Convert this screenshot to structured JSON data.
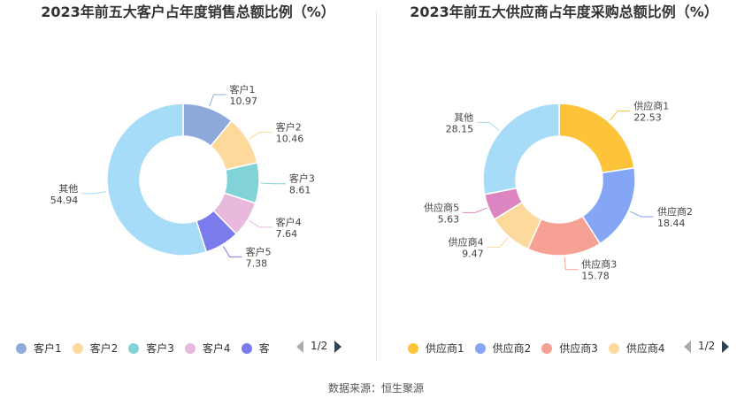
{
  "source": "数据来源：恒生聚源",
  "chart_data": [
    {
      "type": "pie",
      "title": "2023年前五大客户占年度销售总额比例（%）",
      "categories": [
        "客户1",
        "客户2",
        "客户3",
        "客户4",
        "客户5",
        "其他"
      ],
      "values": [
        10.97,
        10.46,
        8.61,
        7.64,
        7.38,
        54.94
      ],
      "value_labels": [
        "10.97",
        "10.46",
        "8.61",
        "7.64",
        "7.38",
        "54.94"
      ],
      "colors": [
        "#8eaadb",
        "#fdd99b",
        "#81d3d8",
        "#e8b9dc",
        "#7b7bed",
        "#a6dcf8"
      ],
      "legend": {
        "placement": "bottom",
        "visible_items": [
          "客户1",
          "客户2",
          "客户3",
          "客户4",
          "客"
        ],
        "page": "1/2"
      }
    },
    {
      "type": "pie",
      "title": "2023年前五大供应商占年度采购总额比例（%）",
      "categories": [
        "供应商1",
        "供应商2",
        "供应商3",
        "供应商4",
        "供应商5",
        "其他"
      ],
      "values": [
        22.53,
        18.44,
        15.78,
        9.47,
        5.63,
        28.15
      ],
      "value_labels": [
        "22.53",
        "18.44",
        "15.78",
        "9.47",
        "5.63",
        "28.15"
      ],
      "colors": [
        "#fdc43a",
        "#85a6f7",
        "#f7a194",
        "#fdd99b",
        "#dc85c0",
        "#a6dcf8"
      ],
      "legend": {
        "placement": "bottom",
        "visible_items": [
          "供应商1",
          "供应商2",
          "供应商3",
          "供应商4"
        ],
        "page": "1/2"
      }
    }
  ]
}
